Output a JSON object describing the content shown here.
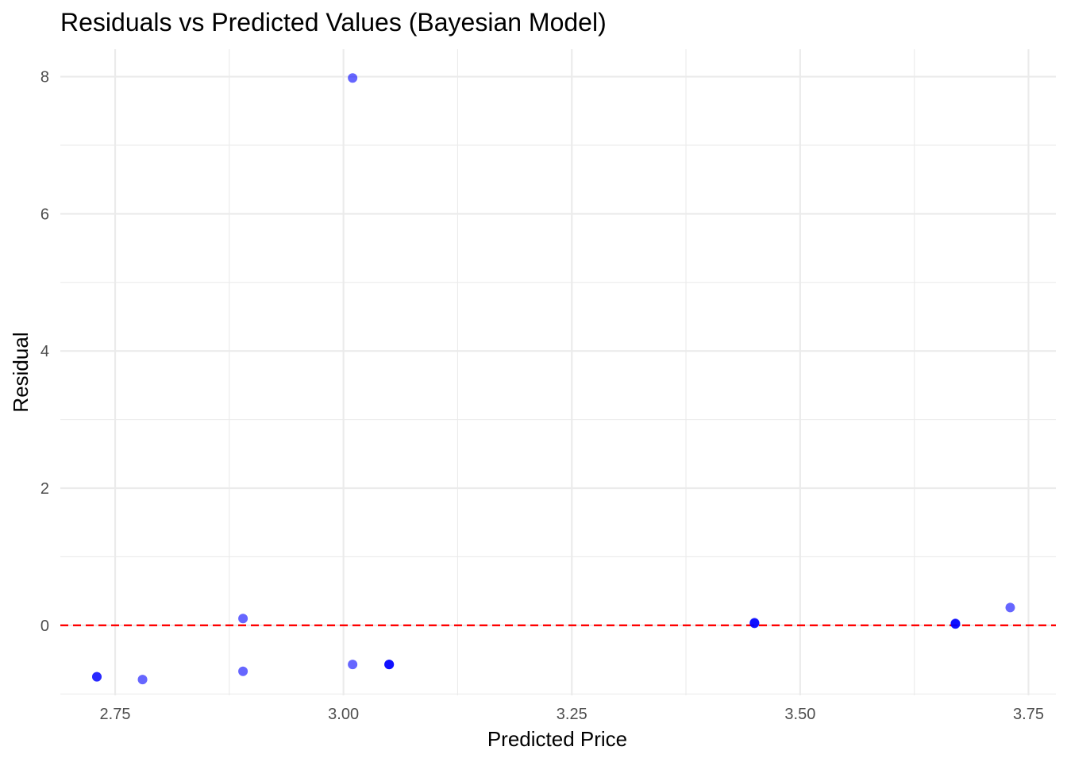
{
  "chart_data": {
    "type": "scatter",
    "title": "Residuals vs Predicted Values (Bayesian Model)",
    "xlabel": "Predicted Price",
    "ylabel": "Residual",
    "xlim": [
      2.69,
      3.78
    ],
    "ylim": [
      -1.02,
      8.4
    ],
    "x_ticks": [
      2.75,
      3.0,
      3.25,
      3.5,
      3.75
    ],
    "x_tick_labels": [
      "2.75",
      "3.00",
      "3.25",
      "3.50",
      "3.75"
    ],
    "x_minor_ticks": [
      2.875,
      3.125,
      3.375,
      3.625
    ],
    "y_ticks": [
      0,
      2,
      4,
      6,
      8
    ],
    "y_tick_labels": [
      "0",
      "2",
      "4",
      "6",
      "8"
    ],
    "y_minor_ticks": [
      -1,
      1,
      3,
      5,
      7
    ],
    "grid": true,
    "reference_line": {
      "y": 0,
      "style": "dashed",
      "color": "#ff0000"
    },
    "point_color": "#0000ff",
    "points": [
      {
        "x": 3.01,
        "y": 7.98
      },
      {
        "x": 2.89,
        "y": 0.1
      },
      {
        "x": 2.89,
        "y": -0.67
      },
      {
        "x": 2.73,
        "y": -0.75
      },
      {
        "x": 2.73,
        "y": -0.75
      },
      {
        "x": 2.78,
        "y": -0.79
      },
      {
        "x": 3.01,
        "y": -0.57
      },
      {
        "x": 3.05,
        "y": -0.57
      },
      {
        "x": 3.05,
        "y": -0.57
      },
      {
        "x": 3.05,
        "y": -0.57
      },
      {
        "x": 3.45,
        "y": 0.03
      },
      {
        "x": 3.45,
        "y": 0.03
      },
      {
        "x": 3.45,
        "y": 0.04
      },
      {
        "x": 3.67,
        "y": 0.02
      },
      {
        "x": 3.67,
        "y": 0.02
      },
      {
        "x": 3.67,
        "y": 0.03
      },
      {
        "x": 3.73,
        "y": 0.26
      }
    ]
  }
}
